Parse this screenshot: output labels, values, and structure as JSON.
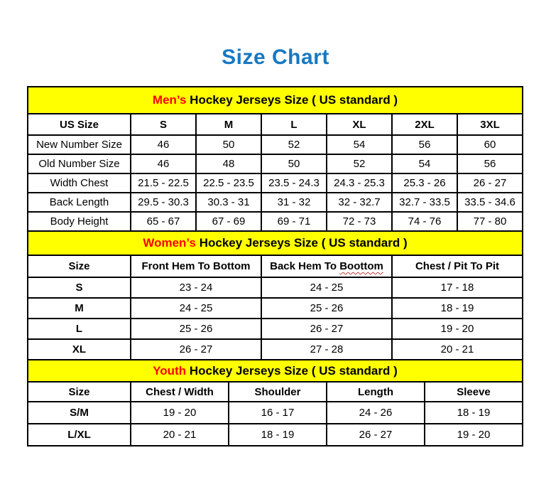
{
  "page_title": "Size Chart",
  "colors": {
    "title_blue": "#1778c2",
    "band_yellow": "#ffff00",
    "highlight_red": "#ff0000",
    "squiggle_red": "#c23b3b"
  },
  "tables": [
    {
      "id": "mens",
      "heading": {
        "highlight": "Men’s",
        "rest": " Hockey Jerseys Size ( US standard )"
      },
      "columns": [
        "US Size",
        "S",
        "M",
        "L",
        "XL",
        "2XL",
        "3XL"
      ],
      "rows": [
        {
          "label": "New Number Size",
          "values": [
            "46",
            "50",
            "52",
            "54",
            "56",
            "60"
          ]
        },
        {
          "label": "Old Number Size",
          "values": [
            "46",
            "48",
            "50",
            "52",
            "54",
            "56"
          ]
        },
        {
          "label": "Width Chest",
          "values": [
            "21.5 - 22.5",
            "22.5 - 23.5",
            "23.5 - 24.3",
            "24.3 - 25.3",
            "25.3 - 26",
            "26 - 27"
          ]
        },
        {
          "label": "Back Length",
          "values": [
            "29.5 - 30.3",
            "30.3 - 31",
            "31 - 32",
            "32 - 32.7",
            "32.7 - 33.5",
            "33.5 - 34.6"
          ]
        },
        {
          "label": "Body Height",
          "values": [
            "65 - 67",
            "67 - 69",
            "69 - 71",
            "72 - 73",
            "74 - 76",
            "77 - 80"
          ]
        }
      ]
    },
    {
      "id": "womens",
      "heading": {
        "highlight": "Women’s",
        "rest": " Hockey Jerseys Size ( US standard )"
      },
      "columns": [
        "Size",
        "Front Hem To Bottom",
        {
          "text": "Back Hem To ",
          "misspelled": "Boottom"
        },
        "Chest / Pit To Pit"
      ],
      "rows": [
        {
          "label": "S",
          "values": [
            "23 - 24",
            "24 - 25",
            "17 - 18"
          ]
        },
        {
          "label": "M",
          "values": [
            "24 - 25",
            "25 - 26",
            "18 - 19"
          ]
        },
        {
          "label": "L",
          "values": [
            "25 - 26",
            "26 - 27",
            "19 - 20"
          ]
        },
        {
          "label": "XL",
          "values": [
            "26 - 27",
            "27 - 28",
            "20 - 21"
          ]
        }
      ]
    },
    {
      "id": "youth",
      "heading": {
        "highlight": "Youth",
        "rest": " Hockey Jerseys Size ( US standard )"
      },
      "columns": [
        "Size",
        "Chest / Width",
        "Shoulder",
        "Length",
        "Sleeve"
      ],
      "rows": [
        {
          "label": "S/M",
          "values": [
            "19 - 20",
            "16 - 17",
            "24 - 26",
            "18 - 19"
          ]
        },
        {
          "label": "L/XL",
          "values": [
            "20 - 21",
            "18 - 19",
            "26 - 27",
            "19 - 20"
          ]
        }
      ]
    }
  ]
}
